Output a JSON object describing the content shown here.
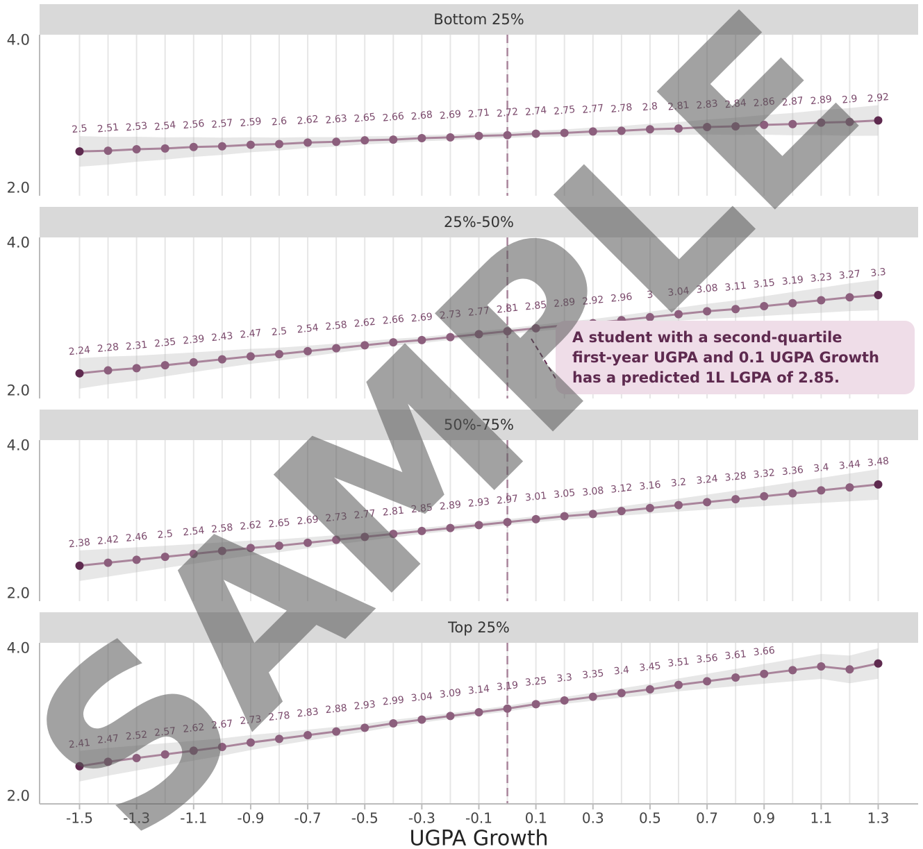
{
  "watermark": "SAMPLE",
  "chart_data": [
    {
      "type": "line",
      "title": "Bottom 25%",
      "color": "#a9849b",
      "point_color": "#8c5f7d",
      "x": [
        -1.5,
        -1.4,
        -1.3,
        -1.2,
        -1.1,
        -1.0,
        -0.9,
        -0.8,
        -0.7,
        -0.6,
        -0.5,
        -0.4,
        -0.3,
        -0.2,
        -0.1,
        0.0,
        0.1,
        0.2,
        0.3,
        0.4,
        0.5,
        0.6,
        0.7,
        0.8,
        0.9,
        1.0,
        1.1,
        1.2,
        1.3
      ],
      "values": [
        2.5,
        2.51,
        2.53,
        2.54,
        2.56,
        2.57,
        2.59,
        2.6,
        2.62,
        2.63,
        2.65,
        2.66,
        2.68,
        2.69,
        2.71,
        2.72,
        2.74,
        2.75,
        2.77,
        2.78,
        2.8,
        2.81,
        2.83,
        2.84,
        2.86,
        2.87,
        2.89,
        2.9,
        2.92
      ],
      "xlim": [
        -1.64,
        1.44
      ],
      "ylim": [
        1.9,
        4.08
      ],
      "yticks": [
        {
          "value": 2,
          "label": "2.0"
        },
        {
          "value": 4,
          "label": "4.0"
        }
      ],
      "vline": 0
    },
    {
      "type": "line",
      "title": "25%-50%",
      "color": "#a9849b",
      "point_color": "#8c5f7d",
      "x": [
        -1.5,
        -1.4,
        -1.3,
        -1.2,
        -1.1,
        -1.0,
        -0.9,
        -0.8,
        -0.7,
        -0.6,
        -0.5,
        -0.4,
        -0.3,
        -0.2,
        -0.1,
        0.0,
        0.1,
        0.2,
        0.3,
        0.4,
        0.5,
        0.6,
        0.7,
        0.8,
        0.9,
        1.0,
        1.1,
        1.2,
        1.3
      ],
      "values": [
        2.24,
        2.28,
        2.31,
        2.35,
        2.39,
        2.43,
        2.47,
        2.5,
        2.54,
        2.58,
        2.62,
        2.66,
        2.69,
        2.73,
        2.77,
        2.81,
        2.85,
        2.89,
        2.92,
        2.96,
        3,
        3.04,
        3.08,
        3.11,
        3.15,
        3.19,
        3.23,
        3.27,
        3.3
      ],
      "xlim": [
        -1.64,
        1.44
      ],
      "ylim": [
        1.9,
        4.08
      ],
      "yticks": [
        {
          "value": 2,
          "label": "2.0"
        },
        {
          "value": 4,
          "label": "4.0"
        }
      ],
      "vline": 0,
      "annotation": [
        "A student with a second-quartile",
        "first-year UGPA and 0.1 UGPA Growth",
        "has a predicted 1L LGPA of 2.85."
      ]
    },
    {
      "type": "line",
      "title": "50%-75%",
      "color": "#a9849b",
      "point_color": "#8c5f7d",
      "x": [
        -1.5,
        -1.4,
        -1.3,
        -1.2,
        -1.1,
        -1.0,
        -0.9,
        -0.8,
        -0.7,
        -0.6,
        -0.5,
        -0.4,
        -0.3,
        -0.2,
        -0.1,
        0.0,
        0.1,
        0.2,
        0.3,
        0.4,
        0.5,
        0.6,
        0.7,
        0.8,
        0.9,
        1.0,
        1.1,
        1.2,
        1.3
      ],
      "values": [
        2.38,
        2.42,
        2.46,
        2.5,
        2.54,
        2.58,
        2.62,
        2.65,
        2.69,
        2.73,
        2.77,
        2.81,
        2.85,
        2.89,
        2.93,
        2.97,
        3.01,
        3.05,
        3.08,
        3.12,
        3.16,
        3.2,
        3.24,
        3.28,
        3.32,
        3.36,
        3.4,
        3.44,
        3.48
      ],
      "xlim": [
        -1.64,
        1.44
      ],
      "ylim": [
        1.9,
        4.08
      ],
      "yticks": [
        {
          "value": 2,
          "label": "2.0"
        },
        {
          "value": 4,
          "label": "4.0"
        }
      ],
      "vline": 0
    },
    {
      "type": "line",
      "title": "Top 25%",
      "color": "#a9849b",
      "point_color": "#8c5f7d",
      "x": [
        -1.5,
        -1.4,
        -1.3,
        -1.2,
        -1.1,
        -1.0,
        -0.9,
        -0.8,
        -0.7,
        -0.6,
        -0.5,
        -0.4,
        -0.3,
        -0.2,
        -0.1,
        0.0,
        0.1,
        0.2,
        0.3,
        0.4,
        0.5,
        0.6,
        0.7,
        0.8,
        0.9,
        1.0,
        1.1,
        1.2,
        1.3
      ],
      "values": [
        2.41,
        2.47,
        2.52,
        2.57,
        2.62,
        2.67,
        2.73,
        2.78,
        2.83,
        2.88,
        2.93,
        2.99,
        3.04,
        3.09,
        3.14,
        3.19,
        3.25,
        3.3,
        3.35,
        3.4,
        3.45,
        3.51,
        3.56,
        3.61,
        3.66,
        3.71,
        3.76,
        3.72,
        3.8
      ],
      "value_labels": [
        "2.41",
        "2.47",
        "2.52",
        "2.57",
        "2.62",
        "2.67",
        "2.73",
        "2.78",
        "2.83",
        "2.88",
        "2.93",
        "2.99",
        "3.04",
        "3.09",
        "3.14",
        "3.19",
        "3.25",
        "3.3",
        "3.35",
        "3.4",
        "3.45",
        "3.51",
        "3.56",
        "3.61",
        "3.66",
        null,
        null,
        null,
        null
      ],
      "xlim": [
        -1.64,
        1.44
      ],
      "ylim": [
        1.9,
        4.08
      ],
      "yticks": [
        {
          "value": 2,
          "label": "2.0"
        },
        {
          "value": 4,
          "label": "4.0"
        }
      ],
      "vline": 0,
      "xticks": [
        -1.5,
        -1.3,
        -1.1,
        -0.9,
        -0.7,
        -0.5,
        -0.3,
        -0.1,
        0.1,
        0.3,
        0.5,
        0.7,
        0.9,
        1.1,
        1.3
      ],
      "xlabel": "UGPA Growth"
    }
  ]
}
